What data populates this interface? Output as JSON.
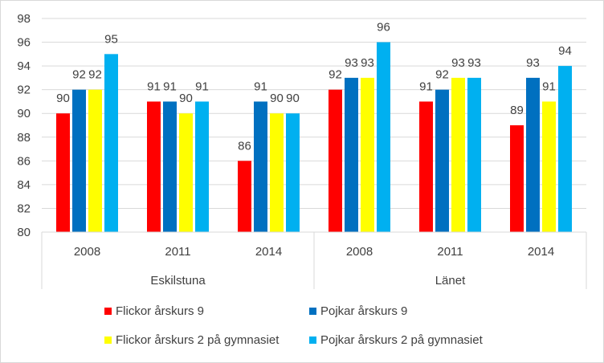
{
  "chart_data": {
    "type": "bar",
    "title": "",
    "xlabel": "",
    "ylabel": "",
    "ylim": [
      80,
      98
    ],
    "yticks": [
      80,
      82,
      84,
      86,
      88,
      90,
      92,
      94,
      96,
      98
    ],
    "grid": true,
    "legend_position": "bottom",
    "groups": [
      {
        "name": "Eskilstuna",
        "categories": [
          "2008",
          "2011",
          "2014"
        ]
      },
      {
        "name": "Länet",
        "categories": [
          "2008",
          "2011",
          "2014"
        ]
      }
    ],
    "categories": [
      "2008",
      "2011",
      "2014",
      "2008",
      "2011",
      "2014"
    ],
    "series": [
      {
        "name": "Flickor årskurs 9",
        "color": "#ff0000",
        "values": [
          90,
          91,
          86,
          92,
          91,
          89
        ]
      },
      {
        "name": "Pojkar årskurs 9",
        "color": "#0070c0",
        "values": [
          92,
          91,
          91,
          93,
          92,
          93
        ]
      },
      {
        "name": "Flickor årskurs 2 på gymnasiet",
        "color": "#ffff00",
        "values": [
          92,
          90,
          90,
          93,
          93,
          91
        ]
      },
      {
        "name": "Pojkar årskurs 2 på gymnasiet",
        "color": "#00b0f0",
        "values": [
          95,
          91,
          90,
          96,
          93,
          94
        ]
      }
    ]
  }
}
